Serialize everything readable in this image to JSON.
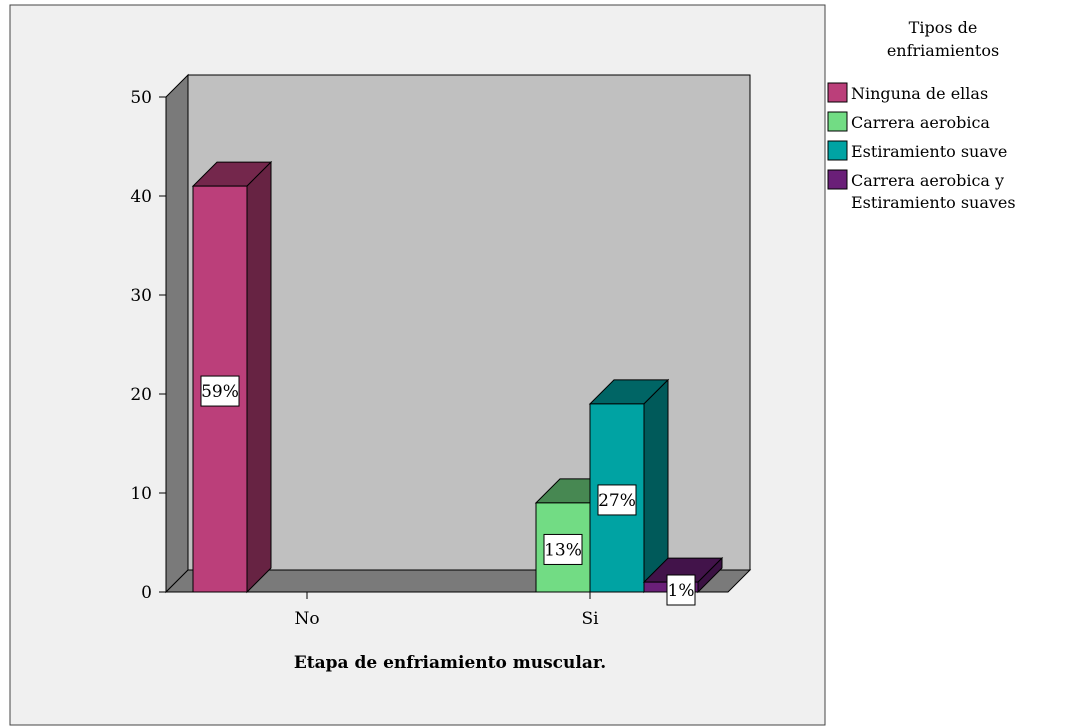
{
  "chart_data": {
    "type": "bar",
    "title": "",
    "xlabel": "Etapa de enfriamiento muscular.",
    "ylabel": "",
    "ylim": [
      0,
      50
    ],
    "yticks": [
      0,
      10,
      20,
      30,
      40,
      50
    ],
    "categories": [
      "No",
      "Si"
    ],
    "legend_title": "Tipos de enfriamientos",
    "legend_position": "right",
    "series": [
      {
        "name": "Ninguna de ellas",
        "color": "#bb3f7a",
        "values": [
          41,
          null
        ],
        "labels": [
          "59%",
          ""
        ]
      },
      {
        "name": "Carrera aerobica",
        "color": "#72dc84",
        "values": [
          null,
          9
        ],
        "labels": [
          "",
          "13%"
        ]
      },
      {
        "name": "Estiramiento suave",
        "color": "#00a3a3",
        "values": [
          null,
          19
        ],
        "labels": [
          "",
          "27%"
        ]
      },
      {
        "name": "Carrera aerobica y Estiramiento suaves",
        "color": "#6a1f78",
        "values": [
          null,
          1
        ],
        "labels": [
          "",
          "1%"
        ]
      }
    ],
    "grid": false,
    "style": "3d"
  }
}
